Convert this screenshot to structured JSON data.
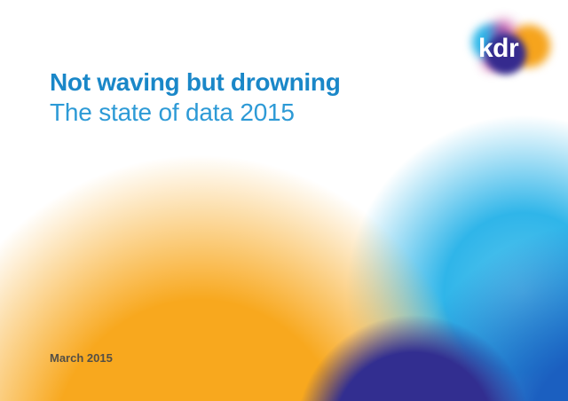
{
  "slide": {
    "title": "Not waving but drowning",
    "subtitle": "The state of data 2015",
    "date": "March 2015"
  },
  "logo": {
    "text": "kdr"
  },
  "colors": {
    "title_blue": "#1a87c8",
    "subtitle_blue": "#2d9ad6",
    "date_gray": "#544f46",
    "blob_orange": "#f8a81e",
    "blob_cyan": "#2fb5e9",
    "blob_deep_blue": "#1b5fc0",
    "blob_indigo": "#322e90",
    "logo_cyan": "#2cb7e9",
    "logo_orange": "#f6a41d",
    "logo_magenta": "#c22b90",
    "logo_purple": "#352a8e",
    "logo_text": "#ffffff"
  }
}
